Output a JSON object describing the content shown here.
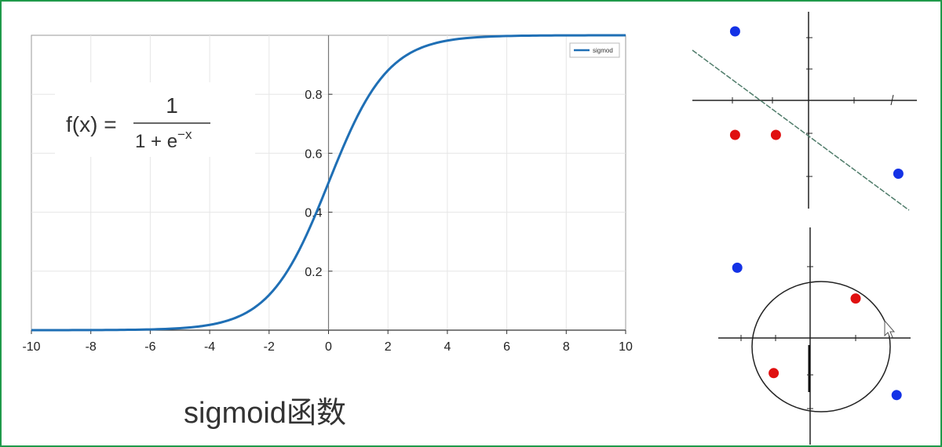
{
  "chart_data": [
    {
      "type": "line",
      "legend": [
        "sigmod"
      ],
      "legend_position": "top-right",
      "grid": true,
      "xlim": [
        -10,
        10
      ],
      "ylim": [
        0,
        1
      ],
      "xticks": [
        -10,
        -8,
        -6,
        -4,
        -2,
        0,
        2,
        4,
        6,
        8,
        10
      ],
      "yticks": [
        0.2,
        0.4,
        0.6,
        0.8
      ],
      "xtick_labels": [
        "-10",
        "-8",
        "-6",
        "-4",
        "-2",
        "0",
        "2",
        "4",
        "6",
        "8",
        "10"
      ],
      "ytick_labels": [
        "0.2",
        "0.4",
        "0.6",
        "0.8"
      ],
      "series": [
        {
          "name": "sigmod",
          "color": "#1f6fb5",
          "x": [
            -10,
            -9,
            -8,
            -7,
            -6,
            -5,
            -4,
            -3,
            -2,
            -1,
            0,
            1,
            2,
            3,
            4,
            5,
            6,
            7,
            8,
            9,
            10
          ],
          "y": [
            5e-05,
            0.00012,
            0.00034,
            0.00091,
            0.00247,
            0.0067,
            0.018,
            0.047,
            0.119,
            0.269,
            0.5,
            0.731,
            0.881,
            0.953,
            0.982,
            0.993,
            0.998,
            0.999,
            1.0,
            1.0,
            1.0
          ]
        }
      ]
    },
    {
      "type": "scatter",
      "grid": false,
      "series": [
        {
          "name": "",
          "color": "#1432e6",
          "x": [
            -1.8,
            2.2
          ],
          "y": [
            1.6,
            -1.7
          ]
        },
        {
          "name": "",
          "color": "#e01010",
          "x": [
            -1.8,
            -0.8
          ],
          "y": [
            -0.8,
            -0.8
          ]
        }
      ]
    },
    {
      "type": "scatter",
      "grid": false,
      "series": [
        {
          "name": "",
          "color": "#1432e6",
          "x": [
            -1.6,
            1.9
          ],
          "y": [
            1.6,
            -1.3
          ]
        },
        {
          "name": "",
          "color": "#e01010",
          "x": [
            1.0,
            -0.8
          ],
          "y": [
            0.9,
            -0.8
          ]
        }
      ]
    }
  ],
  "formula": {
    "lhs": "f(x) =",
    "numerator": "1",
    "denominator_base": "1 + e",
    "denominator_exp": "−x"
  },
  "caption": "sigmoid函数",
  "colors": {
    "border": "#1f9a4a",
    "grid": "#e6e6e6",
    "blue_point": "#1432e6",
    "red_point": "#e01010",
    "divider": "#4f7c6a"
  }
}
